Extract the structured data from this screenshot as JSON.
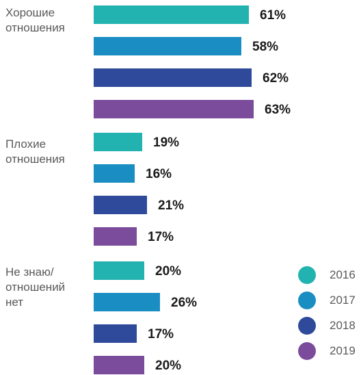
{
  "chart_data": {
    "type": "bar",
    "orientation": "horizontal",
    "categories": [
      {
        "lines": [
          "Хорошие",
          "отношения"
        ]
      },
      {
        "lines": [
          "Плохие",
          "отношения"
        ]
      },
      {
        "lines": [
          "Не знаю/",
          "отношений",
          "нет"
        ]
      }
    ],
    "series": [
      {
        "name": "2016",
        "color": "#22b2b0",
        "values": [
          61,
          19,
          20
        ],
        "labels": [
          "61%",
          "19%",
          "20%"
        ]
      },
      {
        "name": "2017",
        "color": "#1a8ec3",
        "values": [
          58,
          16,
          26
        ],
        "labels": [
          "58%",
          "16%",
          "26%"
        ]
      },
      {
        "name": "2018",
        "color": "#2f4a9a",
        "values": [
          62,
          21,
          17
        ],
        "labels": [
          "62%",
          "21%",
          "17%"
        ]
      },
      {
        "name": "2019",
        "color": "#7b4b9c",
        "values": [
          63,
          17,
          20
        ],
        "labels": [
          "63%",
          "17%",
          "20%"
        ]
      }
    ],
    "legend_position": "bottom-right"
  }
}
